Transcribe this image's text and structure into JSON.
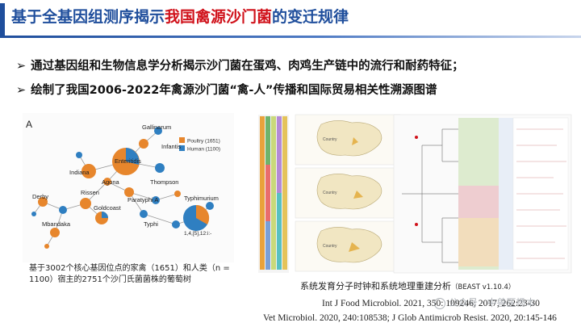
{
  "title": {
    "prefix": "基于全基因组测序揭示",
    "highlight": "我国禽源沙门菌",
    "suffix": "的变迁规律"
  },
  "bullets": [
    "通过基因组和生物信息学分析揭示沙门菌在蛋鸡、肉鸡生产链中的流行和耐药特征；",
    "绘制了我国2006-2022年禽源沙门菌“禽-人”传播和国际贸易相关性溯源图谱"
  ],
  "bullet_marker": "➢",
  "figure_left": {
    "panel_label": "A",
    "legend": [
      {
        "label": "Poultry (1651)",
        "color": "#e7862c"
      },
      {
        "label": "Human (1100)",
        "color": "#2f7fc1"
      }
    ],
    "serovars": [
      "Gallinarum",
      "Infantis",
      "Enteritidis",
      "Indiana",
      "Agona",
      "Thompson",
      "Rissen",
      "Paratyphi A",
      "Derby",
      "Goldcoast",
      "Typhimurium",
      "Mbandaka",
      "Typhi",
      "1,4,[5],12:i:-"
    ],
    "caption": "基于3002个核心基因位点的家禽（1651）和人类（n = 1100）宿主的2751个沙门氏菌菌株的葡萄树"
  },
  "figure_right": {
    "map_labels": [
      "Country",
      "Country",
      "Country"
    ],
    "caption_main": "系统发育分子时钟和系统地理重建分析",
    "caption_small": "（BEAST v1.10.4）"
  },
  "references": [
    "Int J Food Microbiol. 2021, 350: 109246; 2017, 262:23-30",
    "Vet Microbiol. 2020, 240:108538; J Glob Antimicrob Resist. 2020, 20:145-146"
  ],
  "watermark": "公众号 · 中兽医杨本"
}
